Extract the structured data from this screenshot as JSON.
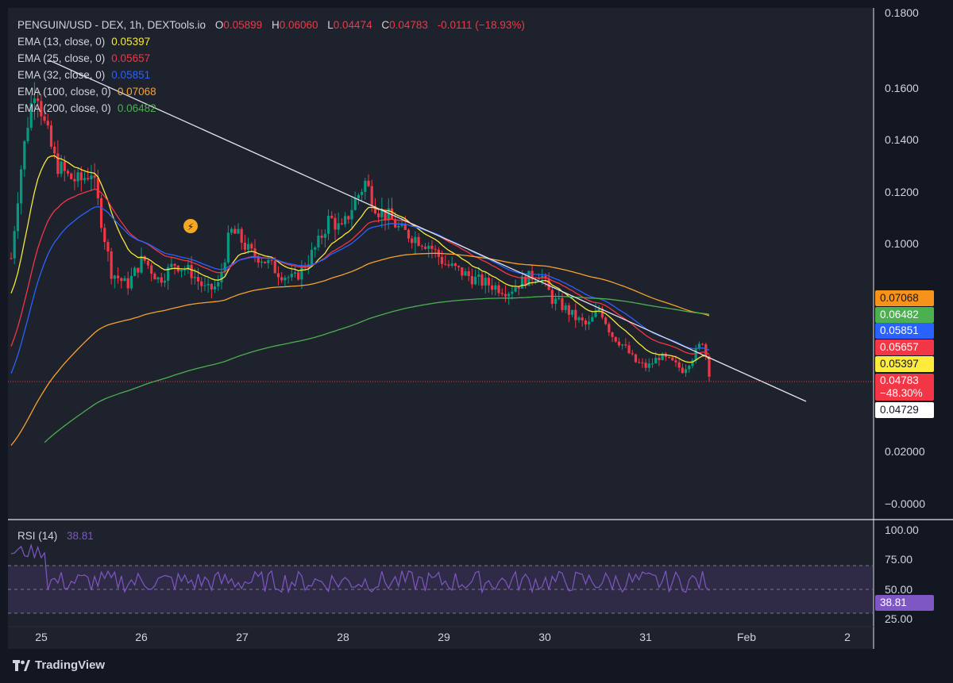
{
  "header": {
    "symbol": "PENGUIN/USD - DEX, 1h, DEXTools.io",
    "o_label": "O",
    "o_value": "0.05899",
    "h_label": "H",
    "h_value": "0.06060",
    "l_label": "L",
    "l_value": "0.04474",
    "c_label": "C",
    "c_value": "0.04783",
    "change": "-0.0111 (−18.93%)"
  },
  "emas": [
    {
      "label": "EMA (13, close, 0)",
      "value": "0.05397",
      "color": "#f5e93b"
    },
    {
      "label": "EMA (25, close, 0)",
      "value": "0.05657",
      "color": "#f23645"
    },
    {
      "label": "EMA (32, close, 0)",
      "value": "0.05851",
      "color": "#2962ff"
    },
    {
      "label": "EMA (100, close, 0)",
      "value": "0.07068",
      "color": "#f7a12c"
    },
    {
      "label": "EMA (200, close, 0)",
      "value": "0.06482",
      "color": "#4caf50"
    }
  ],
  "price_badges": [
    {
      "value": "0.07068",
      "bg": "#f7931a",
      "fg": "#131722"
    },
    {
      "value": "0.06482",
      "bg": "#4caf50",
      "fg": "#ffffff"
    },
    {
      "value": "0.05851",
      "bg": "#2962ff",
      "fg": "#ffffff"
    },
    {
      "value": "0.05657",
      "bg": "#f23645",
      "fg": "#ffffff"
    },
    {
      "value": "0.05397",
      "bg": "#ffeb3b",
      "fg": "#131722"
    }
  ],
  "last_price": {
    "value": "0.04783",
    "change": "−48.30%",
    "bg": "#f23645"
  },
  "line_price": {
    "value": "0.04729"
  },
  "rsi": {
    "label": "RSI (14)",
    "value": "38.81",
    "color": "#7e57c2",
    "ticks": [
      "100.00",
      "75.00",
      "50.00",
      "25.00"
    ]
  },
  "chart_data": {
    "type": "candlestick",
    "title": "PENGUIN/USD - DEX, 1h, DEXTools.io",
    "ylim": [
      0,
      0.18
    ],
    "y_ticks": [
      "0.1800",
      "0.1600",
      "0.1400",
      "0.1200",
      "0.1000",
      "0.02000",
      "−0.0000"
    ],
    "x_ticks": [
      "25",
      "26",
      "27",
      "28",
      "29",
      "30",
      "31",
      "Feb",
      "2"
    ],
    "colors": {
      "up": "#089981",
      "down": "#f23645",
      "ema13": "#f5e93b",
      "ema25": "#f23645",
      "ema32": "#2962ff",
      "ema100": "#f7a12c",
      "ema200": "#4caf50"
    },
    "trendline": {
      "from": [
        "25",
        0.17
      ],
      "to": [
        "Feb",
        0.047
      ]
    },
    "grid": false
  },
  "brand": {
    "name": "TradingView"
  }
}
